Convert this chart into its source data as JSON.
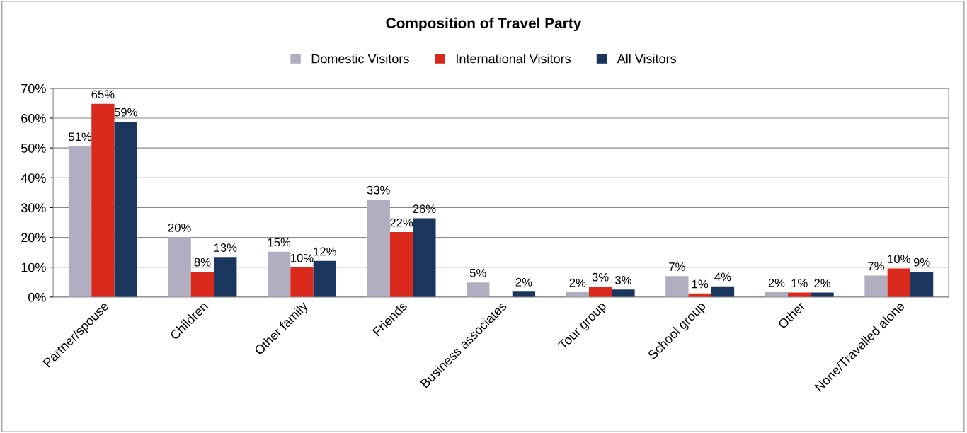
{
  "chart_data": {
    "type": "bar",
    "title": "Composition of Travel Party",
    "categories": [
      "Partner/spouse",
      "Children",
      "Other family",
      "Friends",
      "Business associates",
      "Tour group",
      "School group",
      "Other",
      "None/Travelled alone"
    ],
    "series": [
      {
        "name": "Domestic Visitors",
        "color": "#b0aec0",
        "values": [
          50.6,
          20.1,
          15.2,
          32.7,
          4.9,
          1.6,
          7,
          1.6,
          7.2
        ],
        "value_labels": [
          "51%",
          "20%",
          "15%",
          "33%",
          "5%",
          "2%",
          "7%",
          "2%",
          "7%"
        ]
      },
      {
        "name": "International Visitors",
        "color": "#d9291c",
        "values": [
          64.8,
          8.5,
          9.9,
          21.8,
          null,
          3.5,
          1.2,
          1.5,
          9.6
        ],
        "value_labels": [
          "65%",
          "8%",
          "10%",
          "22%",
          null,
          "3%",
          "1%",
          "1%",
          "10%"
        ]
      },
      {
        "name": "All Visitors",
        "color": "#1a365d",
        "values": [
          58.8,
          13.4,
          12.1,
          26.4,
          1.8,
          2.5,
          3.6,
          1.5,
          8.5
        ],
        "value_labels": [
          "59%",
          "13%",
          "12%",
          "26%",
          "2%",
          "3%",
          "4%",
          "2%",
          "9%"
        ]
      }
    ],
    "ylim": [
      0,
      70
    ],
    "yticks": [
      {
        "value": 0,
        "label": "0%"
      },
      {
        "value": 10,
        "label": "10%"
      },
      {
        "value": 20,
        "label": "20%"
      },
      {
        "value": 30,
        "label": "30%"
      },
      {
        "value": 40,
        "label": "40%"
      },
      {
        "value": 50,
        "label": "50%"
      },
      {
        "value": 60,
        "label": "60%"
      },
      {
        "value": 70,
        "label": "70%"
      }
    ],
    "grid": "y",
    "legend": "top"
  }
}
